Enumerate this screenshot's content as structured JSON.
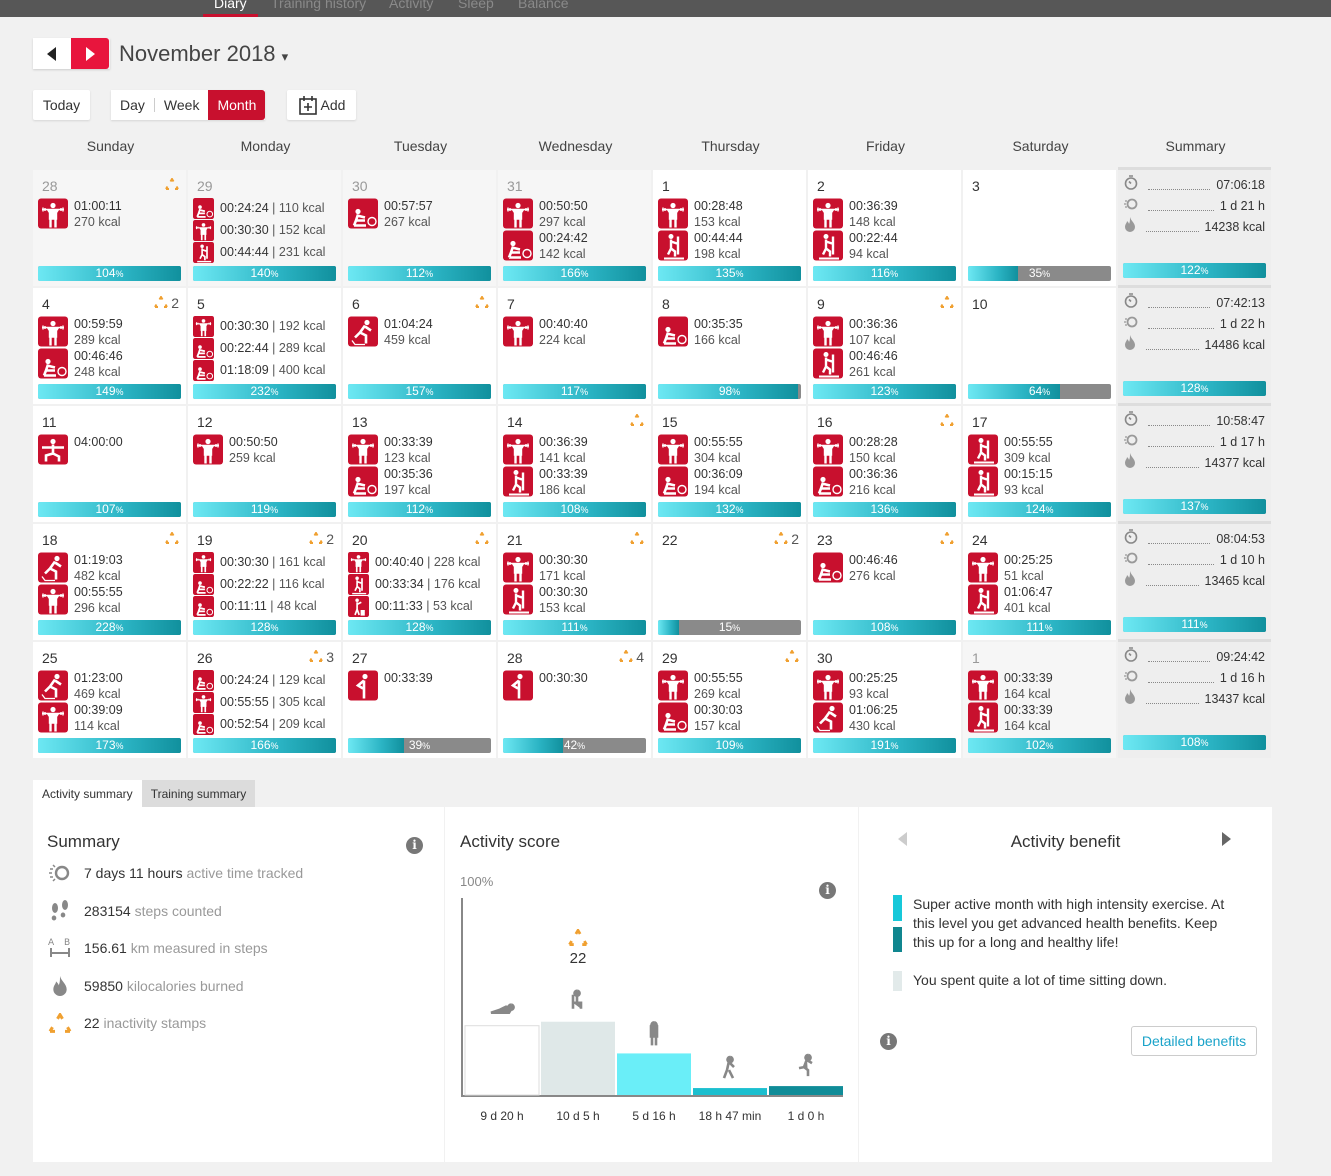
{
  "nav": {
    "tabs": [
      "Diary",
      "Training history",
      "Activity",
      "Sleep",
      "Balance"
    ],
    "active": "Diary"
  },
  "header": {
    "month": "November 2018",
    "caret": "▾"
  },
  "toolbar": {
    "today": "Today",
    "day": "Day",
    "week": "Week",
    "month": "Month",
    "add": "Add"
  },
  "colors": {
    "accent": "#c8102e",
    "bar_light": "#6de8f3",
    "bar_dark": "#11909d",
    "stamp": "#f0a030"
  },
  "weekdays": [
    "Sunday",
    "Monday",
    "Tuesday",
    "Wednesday",
    "Thursday",
    "Friday",
    "Saturday",
    "Summary"
  ],
  "weeks": [
    {
      "days": [
        {
          "date": "28",
          "muted": true,
          "stamp": "",
          "stamped": true,
          "progress": 104,
          "sessions": [
            {
              "icon": "strength",
              "time": "01:00:11",
              "kcal": "270 kcal"
            }
          ]
        },
        {
          "date": "29",
          "muted": true,
          "compact": true,
          "progress": 140,
          "sessions": [
            {
              "icon": "rowing",
              "time": "00:24:24",
              "kcal": "110 kcal"
            },
            {
              "icon": "strength",
              "time": "00:30:30",
              "kcal": "152 kcal"
            },
            {
              "icon": "elliptical",
              "time": "00:44:44",
              "kcal": "231 kcal"
            }
          ]
        },
        {
          "date": "30",
          "muted": true,
          "progress": 112,
          "sessions": [
            {
              "icon": "rowing",
              "time": "00:57:57",
              "kcal": "267 kcal"
            }
          ]
        },
        {
          "date": "31",
          "muted": true,
          "progress": 166,
          "sessions": [
            {
              "icon": "strength",
              "time": "00:50:50",
              "kcal": "297 kcal"
            },
            {
              "icon": "rowing",
              "time": "00:24:42",
              "kcal": "142 kcal"
            }
          ]
        },
        {
          "date": "1",
          "progress": 135,
          "sessions": [
            {
              "icon": "strength",
              "time": "00:28:48",
              "kcal": "153 kcal"
            },
            {
              "icon": "elliptical",
              "time": "00:44:44",
              "kcal": "198 kcal"
            }
          ]
        },
        {
          "date": "2",
          "progress": 116,
          "sessions": [
            {
              "icon": "strength",
              "time": "00:36:39",
              "kcal": "148 kcal"
            },
            {
              "icon": "elliptical",
              "time": "00:22:44",
              "kcal": "94 kcal"
            }
          ]
        },
        {
          "date": "3",
          "progress": 35,
          "sessions": []
        }
      ],
      "summary": {
        "time": "07:06:18",
        "active": "1 d 21 h",
        "kcal": "14238 kcal",
        "progress": 122
      }
    },
    {
      "days": [
        {
          "date": "4",
          "stamped": true,
          "stamp": "2",
          "progress": 149,
          "sessions": [
            {
              "icon": "strength",
              "time": "00:59:59",
              "kcal": "289 kcal"
            },
            {
              "icon": "rowing",
              "time": "00:46:46",
              "kcal": "248 kcal"
            }
          ]
        },
        {
          "date": "5",
          "compact": true,
          "progress": 232,
          "sessions": [
            {
              "icon": "strength",
              "time": "00:30:30",
              "kcal": "192 kcal"
            },
            {
              "icon": "rowing",
              "time": "00:22:44",
              "kcal": "289 kcal"
            },
            {
              "icon": "rowing",
              "time": "01:18:09",
              "kcal": "400 kcal"
            }
          ]
        },
        {
          "date": "6",
          "stamped": true,
          "progress": 157,
          "sessions": [
            {
              "icon": "skating",
              "time": "01:04:24",
              "kcal": "459 kcal"
            }
          ]
        },
        {
          "date": "7",
          "progress": 117,
          "sessions": [
            {
              "icon": "strength",
              "time": "00:40:40",
              "kcal": "224 kcal"
            }
          ]
        },
        {
          "date": "8",
          "progress": 98,
          "sessions": [
            {
              "icon": "rowing",
              "time": "00:35:35",
              "kcal": "166 kcal"
            }
          ]
        },
        {
          "date": "9",
          "stamped": true,
          "progress": 123,
          "sessions": [
            {
              "icon": "strength",
              "time": "00:36:36",
              "kcal": "107 kcal"
            },
            {
              "icon": "elliptical",
              "time": "00:46:46",
              "kcal": "261 kcal"
            }
          ]
        },
        {
          "date": "10",
          "progress": 64,
          "sessions": []
        }
      ],
      "summary": {
        "time": "07:42:13",
        "active": "1 d 22 h",
        "kcal": "14486 kcal",
        "progress": 128
      }
    },
    {
      "days": [
        {
          "date": "11",
          "progress": 107,
          "sessions": [
            {
              "icon": "yoga",
              "time": "04:00:00",
              "kcal": ""
            }
          ]
        },
        {
          "date": "12",
          "progress": 119,
          "sessions": [
            {
              "icon": "strength",
              "time": "00:50:50",
              "kcal": "259 kcal"
            }
          ]
        },
        {
          "date": "13",
          "progress": 112,
          "sessions": [
            {
              "icon": "strength",
              "time": "00:33:39",
              "kcal": "123 kcal"
            },
            {
              "icon": "rowing",
              "time": "00:35:36",
              "kcal": "197 kcal"
            }
          ]
        },
        {
          "date": "14",
          "stamped": true,
          "progress": 108,
          "sessions": [
            {
              "icon": "strength",
              "time": "00:36:39",
              "kcal": "141 kcal"
            },
            {
              "icon": "elliptical",
              "time": "00:33:39",
              "kcal": "186 kcal"
            }
          ]
        },
        {
          "date": "15",
          "progress": 132,
          "sessions": [
            {
              "icon": "strength",
              "time": "00:55:55",
              "kcal": "304 kcal"
            },
            {
              "icon": "rowing",
              "time": "00:36:09",
              "kcal": "194 kcal"
            }
          ]
        },
        {
          "date": "16",
          "stamped": true,
          "progress": 136,
          "sessions": [
            {
              "icon": "strength",
              "time": "00:28:28",
              "kcal": "150 kcal"
            },
            {
              "icon": "rowing",
              "time": "00:36:36",
              "kcal": "216 kcal"
            }
          ]
        },
        {
          "date": "17",
          "progress": 124,
          "sessions": [
            {
              "icon": "elliptical",
              "time": "00:55:55",
              "kcal": "309 kcal"
            },
            {
              "icon": "elliptical",
              "time": "00:15:15",
              "kcal": "93 kcal"
            }
          ]
        }
      ],
      "summary": {
        "time": "10:58:47",
        "active": "1 d 17 h",
        "kcal": "14377 kcal",
        "progress": 137
      }
    },
    {
      "days": [
        {
          "date": "18",
          "stamped": true,
          "progress": 228,
          "sessions": [
            {
              "icon": "skating",
              "time": "01:19:03",
              "kcal": "482 kcal"
            },
            {
              "icon": "strength",
              "time": "00:55:55",
              "kcal": "296 kcal"
            }
          ]
        },
        {
          "date": "19",
          "stamped": true,
          "stamp": "2",
          "compact": true,
          "progress": 128,
          "sessions": [
            {
              "icon": "strength",
              "time": "00:30:30",
              "kcal": "161 kcal"
            },
            {
              "icon": "rowing",
              "time": "00:22:22",
              "kcal": "116 kcal"
            },
            {
              "icon": "rowing",
              "time": "00:11:11",
              "kcal": "48 kcal"
            }
          ]
        },
        {
          "date": "20",
          "stamped": true,
          "compact": true,
          "progress": 128,
          "sessions": [
            {
              "icon": "strength",
              "time": "00:40:40",
              "kcal": "228 kcal"
            },
            {
              "icon": "elliptical",
              "time": "00:33:34",
              "kcal": "176 kcal"
            },
            {
              "icon": "other",
              "time": "00:11:33",
              "kcal": "53 kcal"
            }
          ]
        },
        {
          "date": "21",
          "stamped": true,
          "progress": 111,
          "sessions": [
            {
              "icon": "strength",
              "time": "00:30:30",
              "kcal": "171 kcal"
            },
            {
              "icon": "elliptical",
              "time": "00:30:30",
              "kcal": "153 kcal"
            }
          ]
        },
        {
          "date": "22",
          "stamped": true,
          "stamp": "2",
          "progress": 15,
          "sessions": []
        },
        {
          "date": "23",
          "stamped": true,
          "progress": 108,
          "sessions": [
            {
              "icon": "rowing",
              "time": "00:46:46",
              "kcal": "276 kcal"
            }
          ]
        },
        {
          "date": "24",
          "progress": 111,
          "sessions": [
            {
              "icon": "strength",
              "time": "00:25:25",
              "kcal": "51 kcal"
            },
            {
              "icon": "elliptical",
              "time": "01:06:47",
              "kcal": "401 kcal"
            }
          ]
        }
      ],
      "summary": {
        "time": "08:04:53",
        "active": "1 d 10 h",
        "kcal": "13465 kcal",
        "progress": 111
      }
    },
    {
      "days": [
        {
          "date": "25",
          "progress": 173,
          "sessions": [
            {
              "icon": "skating",
              "time": "01:23:00",
              "kcal": "469 kcal"
            },
            {
              "icon": "strength",
              "time": "00:39:09",
              "kcal": "114 kcal"
            }
          ]
        },
        {
          "date": "26",
          "stamped": true,
          "stamp": "3",
          "compact": true,
          "progress": 166,
          "sessions": [
            {
              "icon": "rowing",
              "time": "00:24:24",
              "kcal": "129 kcal"
            },
            {
              "icon": "strength",
              "time": "00:55:55",
              "kcal": "305 kcal"
            },
            {
              "icon": "rowing",
              "time": "00:52:54",
              "kcal": "209 kcal"
            }
          ]
        },
        {
          "date": "27",
          "progress": 39,
          "sessions": [
            {
              "icon": "stretch",
              "time": "00:33:39",
              "kcal": ""
            }
          ]
        },
        {
          "date": "28",
          "stamped": true,
          "stamp": "4",
          "progress": 42,
          "sessions": [
            {
              "icon": "stretch",
              "time": "00:30:30",
              "kcal": ""
            }
          ]
        },
        {
          "date": "29",
          "stamped": true,
          "progress": 109,
          "sessions": [
            {
              "icon": "strength",
              "time": "00:55:55",
              "kcal": "269 kcal"
            },
            {
              "icon": "rowing",
              "time": "00:30:03",
              "kcal": "157 kcal"
            }
          ]
        },
        {
          "date": "30",
          "progress": 191,
          "sessions": [
            {
              "icon": "strength",
              "time": "00:25:25",
              "kcal": "93 kcal"
            },
            {
              "icon": "skating",
              "time": "01:06:25",
              "kcal": "430 kcal"
            }
          ]
        },
        {
          "date": "1",
          "muted": true,
          "progress": 102,
          "sessions": [
            {
              "icon": "strength",
              "time": "00:33:39",
              "kcal": "164 kcal"
            },
            {
              "icon": "elliptical",
              "time": "00:33:39",
              "kcal": "164 kcal"
            }
          ]
        }
      ],
      "summary": {
        "time": "09:24:42",
        "active": "1 d 16 h",
        "kcal": "13437 kcal",
        "progress": 108
      }
    }
  ],
  "bottom_tabs": [
    "Activity summary",
    "Training summary"
  ],
  "summary_panel": {
    "title": "Summary",
    "rows": [
      {
        "icon": "active-time-icon",
        "value": "7 days 11 hours",
        "label": "active time tracked"
      },
      {
        "icon": "footsteps-icon",
        "value": "283154",
        "label": "steps counted"
      },
      {
        "icon": "distance-icon",
        "value": "156.61",
        "label": "km measured in steps"
      },
      {
        "icon": "flame-icon",
        "value": "59850",
        "label": "kilocalories burned"
      },
      {
        "icon": "inactivity-stamp-icon",
        "value": "22",
        "label": "inactivity stamps"
      }
    ]
  },
  "activity_score": {
    "title": "Activity score",
    "axis_top": "100%",
    "stamp_count": "22",
    "chart_data": {
      "type": "bar",
      "categories": [
        "resting",
        "sitting",
        "low",
        "medium",
        "high"
      ],
      "labels": [
        "9 d 20 h",
        "10 d 5 h",
        "5 d 16 h",
        "18 h 47 min",
        "1 d 0 h"
      ],
      "values": [
        35,
        37,
        21,
        3.5,
        4.5
      ],
      "colors": [
        "#ffffff",
        "#dfe8e8",
        "#6aeef8",
        "#1bbfcf",
        "#108c98"
      ],
      "ylim": [
        0,
        100
      ]
    }
  },
  "benefit": {
    "title": "Activity benefit",
    "text1": "Super active month with high intensity exercise. At this level you get advanced health benefits. Keep this up for a long and healthy life!",
    "text2": "You spent quite a lot of time sitting down.",
    "button": "Detailed benefits"
  }
}
